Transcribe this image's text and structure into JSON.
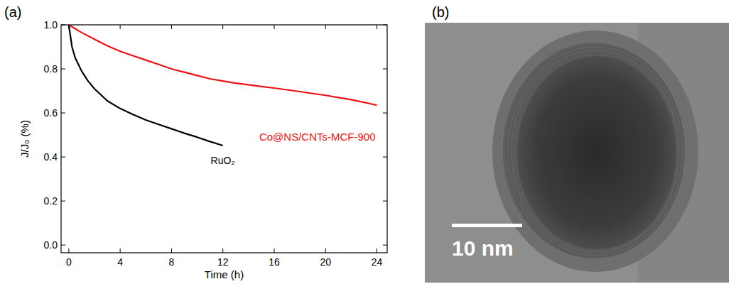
{
  "chart_data": {
    "type": "line",
    "panel": "(a)",
    "x_label": "Time (h)",
    "y_label": "J/J₀ (%)",
    "xlim": [
      -0.6,
      24.8
    ],
    "ylim": [
      -0.035,
      1.0
    ],
    "xticks": [
      0,
      4,
      8,
      12,
      16,
      20,
      24
    ],
    "yticks": [
      {
        "value": 0,
        "label": "0.0"
      },
      0.2,
      0.4,
      0.6,
      0.8,
      {
        "value": 1,
        "label": "1.0"
      }
    ],
    "grid": false,
    "series": [
      {
        "name": "Co@NS/CNTs-MCF-900",
        "color": "#ee1111",
        "x": [
          0,
          1,
          2,
          3,
          4,
          5,
          6,
          7,
          8,
          9,
          10,
          11,
          12,
          13,
          14,
          15,
          16,
          17,
          18,
          19,
          20,
          21,
          22,
          23,
          24
        ],
        "values": [
          1.0,
          0.965,
          0.935,
          0.905,
          0.88,
          0.86,
          0.84,
          0.82,
          0.8,
          0.785,
          0.77,
          0.755,
          0.745,
          0.735,
          0.728,
          0.72,
          0.713,
          0.705,
          0.697,
          0.688,
          0.68,
          0.67,
          0.66,
          0.648,
          0.635
        ]
      },
      {
        "name": "RuO₂",
        "color": "#000000",
        "x": [
          0,
          0.25,
          0.5,
          1,
          1.5,
          2,
          3,
          4,
          5,
          6,
          7,
          8,
          9,
          10,
          11,
          12
        ],
        "values": [
          1.0,
          0.9,
          0.85,
          0.79,
          0.745,
          0.71,
          0.655,
          0.62,
          0.593,
          0.568,
          0.548,
          0.528,
          0.508,
          0.49,
          0.47,
          0.452
        ]
      }
    ]
  },
  "image": {
    "panel": "(b)",
    "scale_bar": "10 nm"
  }
}
